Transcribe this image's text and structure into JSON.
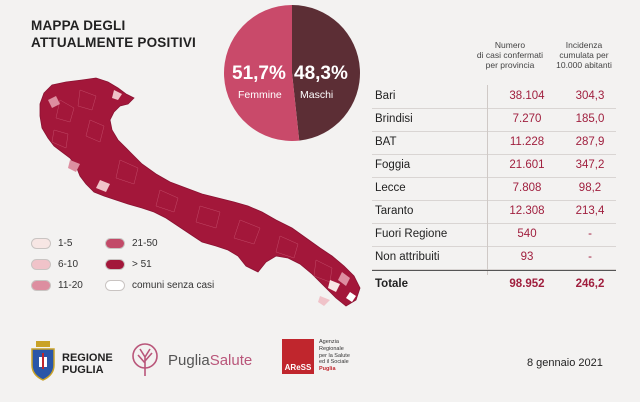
{
  "title": {
    "line1": "MAPPA DEGLI",
    "line2": "ATTUALMENTE POSITIVI"
  },
  "pie": {
    "slices": [
      {
        "label": "Femmine",
        "pct_label": "51,7%",
        "value": 51.7,
        "color": "#c94a6a"
      },
      {
        "label": "Maschi",
        "pct_label": "48,3%",
        "value": 48.3,
        "color": "#5c2e35"
      }
    ]
  },
  "table": {
    "col1_header": [
      "Numero",
      "di casi confermati",
      "per provincia"
    ],
    "col2_header": [
      "Incidenza",
      "cumulata per",
      "10.000 abitanti"
    ],
    "rows": [
      {
        "name": "Bari",
        "cases": "38.104",
        "incidence": "304,3"
      },
      {
        "name": "Brindisi",
        "cases": "7.270",
        "incidence": "185,0"
      },
      {
        "name": "BAT",
        "cases": "11.228",
        "incidence": "287,9"
      },
      {
        "name": "Foggia",
        "cases": "21.601",
        "incidence": "347,2"
      },
      {
        "name": "Lecce",
        "cases": "7.808",
        "incidence": "98,2"
      },
      {
        "name": "Taranto",
        "cases": "12.308",
        "incidence": "213,4"
      },
      {
        "name": "Fuori Regione",
        "cases": "540",
        "incidence": "-"
      },
      {
        "name": "Non attribuiti",
        "cases": "93",
        "incidence": "-"
      }
    ],
    "total": {
      "name": "Totale",
      "cases": "98.952",
      "incidence": "246,2"
    }
  },
  "legend": [
    {
      "label": "1-5",
      "color": "#f7e6e4"
    },
    {
      "label": "6-10",
      "color": "#f0c3c9"
    },
    {
      "label": "11-20",
      "color": "#dd8ea0"
    },
    {
      "label": "21-50",
      "color": "#c24a68"
    },
    {
      "label": "> 51",
      "color": "#a3173a"
    },
    {
      "label": "comuni senza casi",
      "color": "#ffffff"
    }
  ],
  "footer": {
    "regione": {
      "line1": "REGIONE",
      "line2": "PUGLIA"
    },
    "pugliasalute": {
      "part1": "Puglia",
      "part2": "Salute"
    },
    "aress": {
      "logo": "AReSS",
      "line1": "Agenzia",
      "line2": "Regionale",
      "line3": "per la Salute",
      "line4": "ed il Sociale",
      "line5": "Puglia"
    },
    "date": "8 gennaio 2021"
  },
  "chart_data": [
    {
      "type": "pie",
      "title": "",
      "labels": [
        "Femmine",
        "Maschi"
      ],
      "values": [
        51.7,
        48.3
      ],
      "unit": "%"
    },
    {
      "type": "table",
      "title": "",
      "columns": [
        "",
        "Numero di casi confermati per provincia",
        "Incidenza cumulata per 10.000 abitanti"
      ],
      "rows": [
        [
          "Bari",
          38104,
          304.3
        ],
        [
          "Brindisi",
          7270,
          185.0
        ],
        [
          "BAT",
          11228,
          287.9
        ],
        [
          "Foggia",
          21601,
          347.2
        ],
        [
          "Lecce",
          7808,
          98.2
        ],
        [
          "Taranto",
          12308,
          213.4
        ],
        [
          "Fuori Regione",
          540,
          null
        ],
        [
          "Non attribuiti",
          93,
          null
        ],
        [
          "Totale",
          98952,
          246.2
        ]
      ]
    }
  ]
}
